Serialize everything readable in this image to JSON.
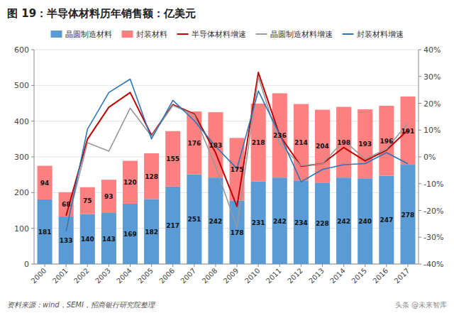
{
  "chart_data": {
    "type": "bar",
    "title": "图 19：半导体材料历年销售额：亿美元",
    "categories": [
      "2000",
      "2001",
      "2002",
      "2003",
      "2004",
      "2005",
      "2006",
      "2007",
      "2008",
      "2009",
      "2010",
      "2011",
      "2012",
      "2013",
      "2014",
      "2015",
      "2016",
      "2017"
    ],
    "series": [
      {
        "name": "晶圆制造材料",
        "type": "bar",
        "color": "#5B9BD5",
        "values": [
          181,
          133,
          140,
          143,
          169,
          182,
          217,
          251,
          242,
          178,
          231,
          242,
          234,
          228,
          242,
          240,
          247,
          278
        ]
      },
      {
        "name": "封装材料",
        "type": "bar",
        "color": "#FF8080",
        "values": [
          94,
          68,
          75,
          93,
          120,
          128,
          155,
          176,
          183,
          175,
          218,
          236,
          214,
          204,
          198,
          193,
          196,
          191
        ]
      },
      {
        "name": "半导体材料增速",
        "type": "line",
        "axis": "y2",
        "color": "#C00000",
        "values": [
          null,
          -22.0,
          6.6,
          18.5,
          24.0,
          8.0,
          19.5,
          16.0,
          1.5,
          -18.5,
          31.5,
          8.0,
          -3.5,
          -2.5,
          3.5,
          -1.5,
          2.5,
          10.0
        ]
      },
      {
        "name": "晶圆制造材料增速",
        "type": "line",
        "axis": "y2",
        "color": "#999999",
        "values": [
          null,
          -26.5,
          5.3,
          2.1,
          18.2,
          7.7,
          19.2,
          15.7,
          -3.6,
          -26.4,
          29.8,
          4.8,
          -3.3,
          -2.6,
          6.1,
          -0.8,
          2.9,
          12.6
        ]
      },
      {
        "name": "封装材料增速",
        "type": "line",
        "axis": "y2",
        "color": "#2E75B6",
        "values": [
          null,
          -27.7,
          10.3,
          24.0,
          29.0,
          6.7,
          21.1,
          13.5,
          3.9,
          -4.4,
          24.6,
          8.3,
          -9.3,
          -4.7,
          -2.9,
          -2.5,
          1.6,
          -2.6
        ]
      }
    ],
    "stacked": true,
    "data_labels": true,
    "ylim": [
      0,
      600
    ],
    "yticks": [
      0,
      100,
      200,
      300,
      400,
      500,
      600
    ],
    "y2lim": [
      -40,
      40
    ],
    "y2ticks": [
      {
        "value": -40,
        "label": "-40%"
      },
      {
        "value": -30,
        "label": "-30%"
      },
      {
        "value": -20,
        "label": "-20%"
      },
      {
        "value": -10,
        "label": "-10%"
      },
      {
        "value": 0,
        "label": "0%"
      },
      {
        "value": 10,
        "label": "10%"
      },
      {
        "value": 20,
        "label": "20%"
      },
      {
        "value": 30,
        "label": "30%"
      },
      {
        "value": 40,
        "label": "40%"
      }
    ],
    "grid": true,
    "legend": "top",
    "annotations": [
      "资料来源：wind，SEMI，招商银行研究院整理",
      "头条 @未来智库"
    ]
  }
}
